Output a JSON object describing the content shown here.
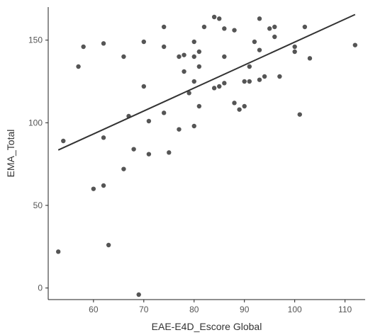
{
  "chart_data": {
    "type": "scatter",
    "title": "",
    "xlabel": "EAE-E4D_Escore Global",
    "ylabel": "EMA_Total",
    "xlim": [
      51,
      114
    ],
    "ylim": [
      -7,
      170
    ],
    "xticks": [
      60,
      70,
      80,
      90,
      100,
      110
    ],
    "yticks": [
      0,
      50,
      100,
      150
    ],
    "grid": false,
    "legend": "none",
    "point_color": "#555555",
    "line_color": "#333333",
    "points": [
      [
        53,
        22
      ],
      [
        54,
        89
      ],
      [
        57,
        134
      ],
      [
        58,
        146
      ],
      [
        60,
        60
      ],
      [
        62,
        148
      ],
      [
        62,
        91
      ],
      [
        62,
        62
      ],
      [
        63,
        26
      ],
      [
        66,
        140
      ],
      [
        66,
        72
      ],
      [
        67,
        104
      ],
      [
        68,
        84
      ],
      [
        69,
        -4
      ],
      [
        70,
        149
      ],
      [
        70,
        122
      ],
      [
        71,
        101
      ],
      [
        71,
        81
      ],
      [
        74,
        158
      ],
      [
        74,
        146
      ],
      [
        74,
        106
      ],
      [
        75,
        82
      ],
      [
        77,
        140
      ],
      [
        77,
        96
      ],
      [
        78,
        141
      ],
      [
        78,
        131
      ],
      [
        79,
        118
      ],
      [
        80,
        149
      ],
      [
        80,
        140
      ],
      [
        80,
        125
      ],
      [
        80,
        98
      ],
      [
        81,
        143
      ],
      [
        81,
        134
      ],
      [
        81,
        110
      ],
      [
        82,
        158
      ],
      [
        84,
        164
      ],
      [
        84,
        121
      ],
      [
        85,
        163
      ],
      [
        85,
        122
      ],
      [
        86,
        157
      ],
      [
        86,
        140
      ],
      [
        86,
        124
      ],
      [
        88,
        156
      ],
      [
        88,
        112
      ],
      [
        89,
        108
      ],
      [
        90,
        125
      ],
      [
        90,
        110
      ],
      [
        91,
        134
      ],
      [
        91,
        125
      ],
      [
        92,
        149
      ],
      [
        93,
        163
      ],
      [
        93,
        144
      ],
      [
        93,
        126
      ],
      [
        94,
        128
      ],
      [
        95,
        157
      ],
      [
        96,
        158
      ],
      [
        96,
        152
      ],
      [
        97,
        128
      ],
      [
        100,
        146
      ],
      [
        100,
        143
      ],
      [
        101,
        105
      ],
      [
        102,
        158
      ],
      [
        103,
        139
      ],
      [
        112,
        147
      ]
    ],
    "trendline": {
      "x": [
        53,
        112
      ],
      "y": [
        83.5,
        165.5
      ]
    }
  }
}
